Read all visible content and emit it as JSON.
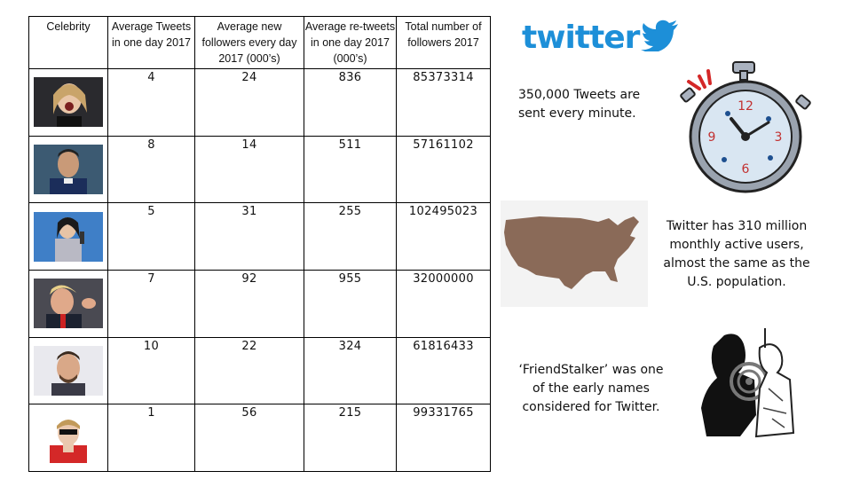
{
  "table": {
    "headers": [
      "Celebrity",
      "Average Tweets in one day 2017",
      "Average new followers every day 2017 (000’s)",
      "Average re-tweets in one day 2017 (000’s)",
      "Total number of followers 2017"
    ],
    "rows": [
      {
        "avg_tweets": "4",
        "new_followers": "24",
        "retweets": "836",
        "total_followers": "85373314"
      },
      {
        "avg_tweets": "8",
        "new_followers": "14",
        "retweets": "511",
        "total_followers": "57161102"
      },
      {
        "avg_tweets": "5",
        "new_followers": "31",
        "retweets": "255",
        "total_followers": "102495023"
      },
      {
        "avg_tweets": "7",
        "new_followers": "92",
        "retweets": "955",
        "total_followers": "32000000"
      },
      {
        "avg_tweets": "10",
        "new_followers": "22",
        "retweets": "324",
        "total_followers": "61816433"
      },
      {
        "avg_tweets": "1",
        "new_followers": "56",
        "retweets": "215",
        "total_followers": "99331765"
      }
    ]
  },
  "logo": {
    "text": "twitter",
    "color": "#1d8fd8",
    "icon": "bird-icon"
  },
  "facts": {
    "fact_1": "350,000 Tweets are sent every minute.",
    "fact_2": "Twitter has 310 million monthly active users, almost the same as the U.S. population.",
    "fact_3": "‘FriendStalker’ was one of the early names considered for Twitter."
  },
  "illustrations": {
    "stopwatch_numbers": [
      "12",
      "3",
      "6",
      "9"
    ],
    "map_color": "#8a6a58"
  }
}
